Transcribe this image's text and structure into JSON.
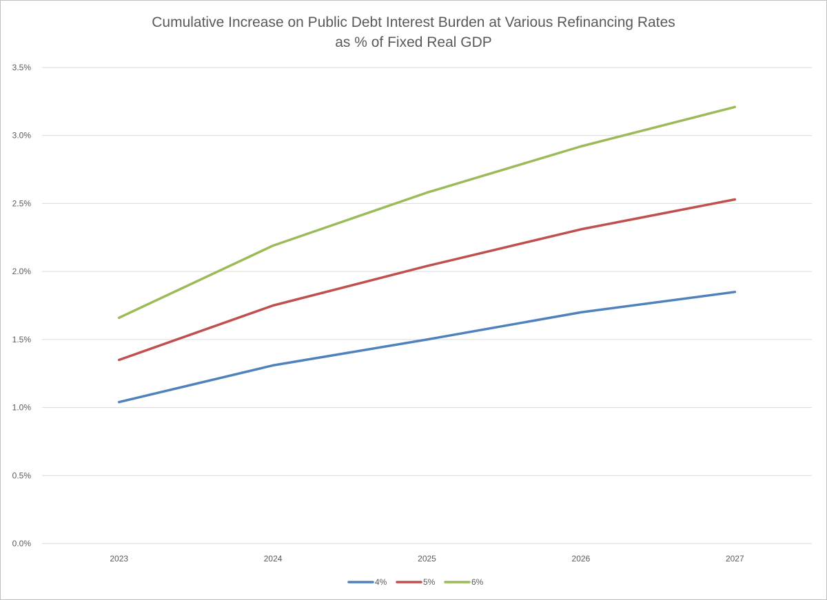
{
  "chart_data": {
    "type": "line",
    "title": [
      "Cumulative Increase on Public Debt Interest Burden at Various Refinancing Rates",
      "as % of Fixed Real GDP"
    ],
    "xlabel": "",
    "ylabel": "",
    "categories": [
      "2023",
      "2024",
      "2025",
      "2026",
      "2027"
    ],
    "ylim": [
      0,
      3.5
    ],
    "yticks": [
      0.0,
      0.5,
      1.0,
      1.5,
      2.0,
      2.5,
      3.0,
      3.5
    ],
    "ytick_labels": [
      "0.0%",
      "0.5%",
      "1.0%",
      "1.5%",
      "2.0%",
      "2.5%",
      "3.0%",
      "3.5%"
    ],
    "grid": true,
    "legend_position": "bottom",
    "series": [
      {
        "name": "4%",
        "color": "#4f81bd",
        "values": [
          1.04,
          1.31,
          1.5,
          1.7,
          1.85
        ]
      },
      {
        "name": "5%",
        "color": "#c0504d",
        "values": [
          1.35,
          1.75,
          2.04,
          2.31,
          2.53
        ]
      },
      {
        "name": "6%",
        "color": "#9bbb59",
        "values": [
          1.66,
          2.19,
          2.58,
          2.92,
          3.21
        ]
      }
    ]
  }
}
